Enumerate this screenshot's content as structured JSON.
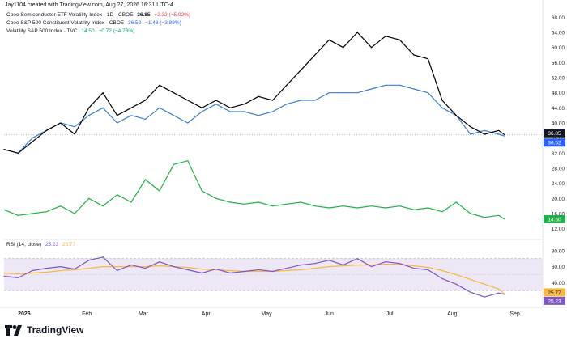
{
  "header": {
    "credit": "Jay1104 created with TradingView.com, Aug 27, 2026 16:31 UTC-4"
  },
  "legend": [
    {
      "name": "Cboe Semiconductor ETF Volatility Index · 1D · CBOE",
      "value": "36.85",
      "change": "−2.32 (−5.92%)",
      "color": "#000000"
    },
    {
      "name": "Cboe S&P 500 Constituent Volatility Index · CBOE",
      "value": "36.52",
      "change": "−1.48 (−3.89%)",
      "color": "#2962ff"
    },
    {
      "name": "Volatility S&P 500 Index · TVC",
      "value": "14.50",
      "change": "−0.72 (−4.73%)",
      "color": "#089981"
    }
  ],
  "rsi_legend": {
    "name": "RSI (14, close)",
    "rsi_value": "25.23",
    "ma_value": "25.77"
  },
  "brand": {
    "logo_text": "TradingView"
  },
  "colors": {
    "semi": "#000000",
    "spx_constituent": "#3d7ecf",
    "vix": "#22b04a",
    "rsi": "#7e57c2",
    "rsi_ma": "#f5b942",
    "rsi_band": "#ede7f6",
    "rsi_oversold_fill": "#f8bbd0",
    "axis_text": "#131722",
    "grid": "#b0b3bd"
  },
  "chart_data": [
    {
      "type": "line",
      "title": "",
      "x": [
        "2025-12-22",
        "2025-12-29",
        "2026-01-05",
        "2026-01-12",
        "2026-01-19",
        "2026-01-26",
        "2026-02-02",
        "2026-02-09",
        "2026-02-16",
        "2026-02-23",
        "2026-03-02",
        "2026-03-09",
        "2026-03-16",
        "2026-03-23",
        "2026-03-30",
        "2026-04-06",
        "2026-04-13",
        "2026-04-20",
        "2026-04-27",
        "2026-05-04",
        "2026-05-11",
        "2026-05-18",
        "2026-05-25",
        "2026-06-01",
        "2026-06-08",
        "2026-06-15",
        "2026-06-22",
        "2026-06-29",
        "2026-07-06",
        "2026-07-13",
        "2026-07-20",
        "2026-07-27",
        "2026-08-03",
        "2026-08-10",
        "2026-08-17",
        "2026-08-24",
        "2026-08-27"
      ],
      "x_ticks": [
        "2026",
        "Feb",
        "Mar",
        "Apr",
        "May",
        "Jun",
        "Jul",
        "Aug",
        "Sep"
      ],
      "ylim": [
        10,
        70
      ],
      "y_ticks": [
        12.0,
        16.0,
        20.0,
        24.0,
        28.0,
        32.0,
        36.0,
        40.0,
        44.0,
        48.0,
        52.0,
        56.0,
        60.0,
        64.0,
        68.0
      ],
      "series": [
        {
          "name": "Cboe Semiconductor ETF Volatility Index · 1D · CBOE",
          "color": "#000000",
          "values": [
            33,
            32,
            35,
            38,
            40,
            37,
            44,
            48,
            42,
            44,
            46,
            50,
            48,
            46,
            44,
            46,
            44,
            45,
            47,
            46,
            50,
            54,
            58,
            62,
            60,
            64,
            60,
            63,
            62,
            58,
            57,
            46,
            42,
            39,
            37,
            38,
            36.85
          ]
        },
        {
          "name": "Cboe S&P 500 Constituent Volatility Index · CBOE",
          "color": "#3d7ecf",
          "values": [
            33,
            32,
            36,
            38,
            40,
            39,
            42,
            44,
            40,
            42,
            41,
            44,
            42,
            40,
            43,
            45,
            43,
            43,
            42,
            43,
            45,
            46,
            46,
            48,
            48,
            48,
            49,
            50,
            50,
            49,
            48,
            44,
            42,
            37,
            38,
            37,
            36.52
          ]
        },
        {
          "name": "Volatility S&P 500 Index · TVC",
          "color": "#22b04a",
          "values": [
            17,
            15.5,
            16,
            16.5,
            18,
            16,
            20,
            18,
            21,
            19,
            25,
            22,
            29,
            30,
            22,
            20,
            19,
            18.5,
            19,
            18,
            18.5,
            19,
            18,
            17.5,
            18,
            17.5,
            18,
            17.5,
            18,
            17,
            17.5,
            16.5,
            19,
            16,
            15,
            15.5,
            14.5
          ]
        }
      ]
    },
    {
      "type": "line",
      "title": "RSI (14, close)",
      "x_ticks": [
        "2026",
        "Feb",
        "Mar",
        "Apr",
        "May",
        "Jun",
        "Jul",
        "Aug",
        "Sep"
      ],
      "ylim": [
        15,
        90
      ],
      "y_ticks": [
        20.0,
        40.0,
        60.0,
        80.0
      ],
      "bands": [
        30,
        70
      ],
      "series": [
        {
          "name": "RSI",
          "color": "#7e57c2",
          "values": [
            48,
            46,
            55,
            58,
            60,
            57,
            68,
            72,
            55,
            62,
            58,
            66,
            60,
            56,
            52,
            57,
            52,
            54,
            56,
            54,
            58,
            62,
            64,
            68,
            62,
            70,
            60,
            66,
            64,
            58,
            56,
            45,
            38,
            28,
            22,
            27,
            25.23
          ]
        },
        {
          "name": "MA",
          "color": "#f5b942",
          "values": [
            52,
            51,
            52,
            53,
            55,
            56,
            58,
            60,
            60,
            60,
            60,
            61,
            60,
            59,
            57,
            56,
            55,
            54,
            54,
            54,
            55,
            56,
            58,
            60,
            61,
            62,
            62,
            63,
            63,
            61,
            59,
            55,
            50,
            44,
            38,
            32,
            25.77
          ]
        }
      ]
    }
  ]
}
